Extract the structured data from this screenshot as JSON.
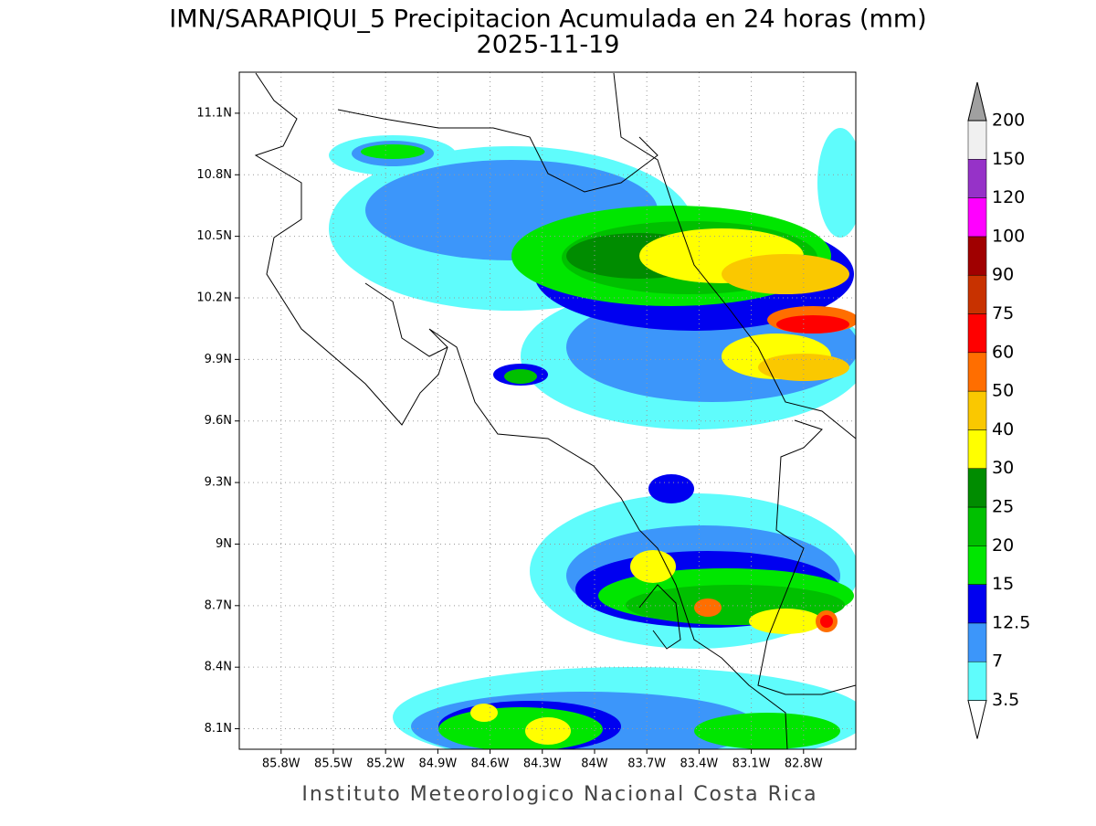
{
  "chart_data": {
    "type": "map",
    "title": "IMN/SARAPIQUI_5 Precipitacion Acumulada en 24 horas (mm)",
    "subtitle": "2025-11-19",
    "footer": "Instituto Meteorologico Nacional Costa Rica",
    "xlim": [
      -86.04,
      -82.5
    ],
    "ylim": [
      8.0,
      11.3
    ],
    "xticks": [
      {
        "value": -85.8,
        "label": "85.8W"
      },
      {
        "value": -85.5,
        "label": "85.5W"
      },
      {
        "value": -85.2,
        "label": "85.2W"
      },
      {
        "value": -84.9,
        "label": "84.9W"
      },
      {
        "value": -84.6,
        "label": "84.6W"
      },
      {
        "value": -84.3,
        "label": "84.3W"
      },
      {
        "value": -84,
        "label": "84W"
      },
      {
        "value": -83.7,
        "label": "83.7W"
      },
      {
        "value": -83.4,
        "label": "83.4W"
      },
      {
        "value": -83.1,
        "label": "83.1W"
      },
      {
        "value": -82.8,
        "label": "82.8W"
      }
    ],
    "yticks": [
      {
        "value": 8.1,
        "label": "8.1N"
      },
      {
        "value": 8.4,
        "label": "8.4N"
      },
      {
        "value": 8.7,
        "label": "8.7N"
      },
      {
        "value": 9,
        "label": "9N"
      },
      {
        "value": 9.3,
        "label": "9.3N"
      },
      {
        "value": 9.6,
        "label": "9.6N"
      },
      {
        "value": 9.9,
        "label": "9.9N"
      },
      {
        "value": 10.2,
        "label": "10.2N"
      },
      {
        "value": 10.5,
        "label": "10.5N"
      },
      {
        "value": 10.8,
        "label": "10.8N"
      },
      {
        "value": 11.1,
        "label": "11.1N"
      }
    ],
    "grid": true,
    "colorbar": {
      "levels": [
        3.5,
        7,
        12.5,
        15,
        20,
        25,
        30,
        40,
        50,
        60,
        75,
        90,
        100,
        120,
        150,
        200
      ],
      "colors": [
        "#ffffff",
        "#5ffcfc",
        "#3c96fa",
        "#0000f0",
        "#00e600",
        "#00c000",
        "#008c00",
        "#ffff00",
        "#fac800",
        "#ff6e00",
        "#ff0000",
        "#c83200",
        "#a00000",
        "#ff00ff",
        "#9632c8",
        "#f0f0f0",
        "#a0a0a0"
      ]
    }
  }
}
